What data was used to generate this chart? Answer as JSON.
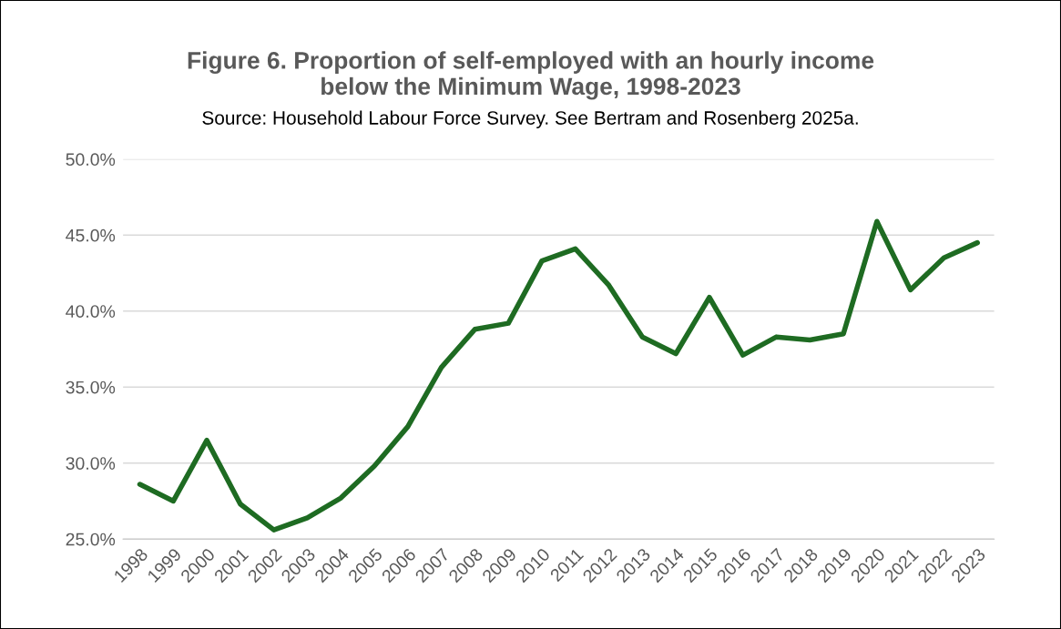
{
  "chart_data": {
    "type": "line",
    "title": "Figure 6. Proportion of self-employed with an hourly income\nbelow the Minimum Wage, 1998-2023",
    "subtitle": "Source: Household Labour Force Survey. See Bertram and Rosenberg 2025a.",
    "categories": [
      "1998",
      "1999",
      "2000",
      "2001",
      "2002",
      "2003",
      "2004",
      "2005",
      "2006",
      "2007",
      "2008",
      "2009",
      "2010",
      "2011",
      "2012",
      "2013",
      "2014",
      "2015",
      "2016",
      "2017",
      "2018",
      "2019",
      "2020",
      "2021",
      "2022",
      "2023"
    ],
    "series": [
      {
        "color": "#1e6b22",
        "values": [
          28.6,
          27.5,
          31.5,
          27.3,
          25.6,
          26.4,
          27.7,
          29.8,
          32.4,
          36.3,
          38.8,
          39.2,
          43.3,
          44.1,
          41.7,
          38.3,
          37.2,
          40.9,
          37.1,
          38.3,
          38.1,
          38.5,
          45.9,
          41.4,
          43.5,
          44.5
        ]
      }
    ],
    "ylim": [
      25,
      50
    ],
    "yticks": [
      {
        "value": 25,
        "label": "25.0%"
      },
      {
        "value": 30,
        "label": "30.0%"
      },
      {
        "value": 35,
        "label": "35.0%"
      },
      {
        "value": 40,
        "label": "40.0%"
      },
      {
        "value": 45,
        "label": "45.0%"
      },
      {
        "value": 50,
        "label": "50.0%"
      }
    ],
    "grid": "y",
    "marker": "none",
    "line_style": "solid"
  }
}
